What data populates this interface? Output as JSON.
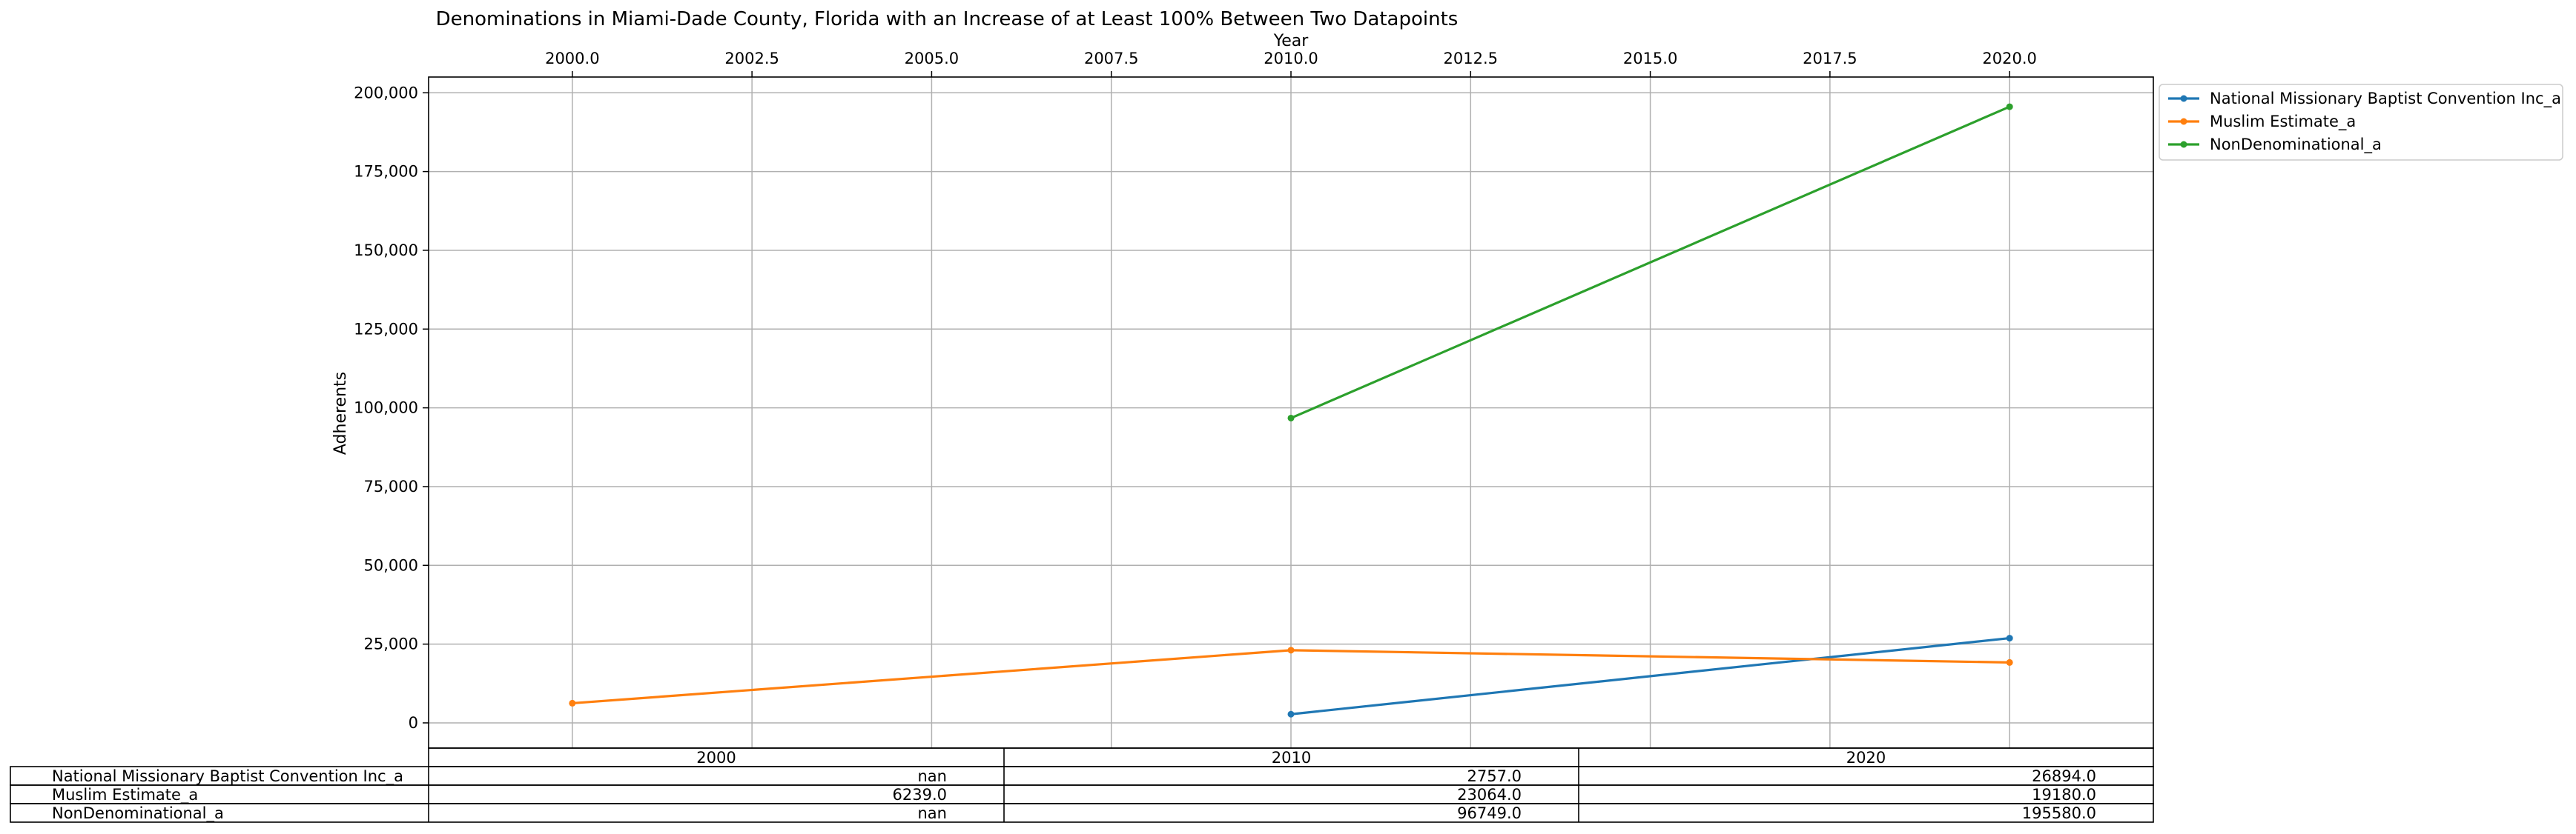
{
  "chart_data": {
    "type": "line",
    "title": "Denominations in Miami-Dade County, Florida with an Increase of at Least 100% Between Two Datapoints",
    "xlabel": "Year",
    "ylabel": "Adherents",
    "xlim": [
      1998.0,
      2022.0
    ],
    "ylim": [
      -8000,
      205000
    ],
    "x_ticks": [
      "2000.0",
      "2002.5",
      "2005.0",
      "2007.5",
      "2010.0",
      "2012.5",
      "2015.0",
      "2017.5",
      "2020.0"
    ],
    "y_ticks": [
      "0",
      "25,000",
      "50,000",
      "75,000",
      "100,000",
      "125,000",
      "150,000",
      "175,000",
      "200,000"
    ],
    "x_axis_position": "top",
    "grid": true,
    "legend_position": "outside-top-right",
    "series": [
      {
        "name": "National Missionary Baptist Convention Inc_a",
        "color": "#1f77b4",
        "x": [
          2000,
          2010,
          2020
        ],
        "values": [
          null,
          2757.0,
          26894.0
        ]
      },
      {
        "name": "Muslim Estimate_a",
        "color": "#ff7f0e",
        "x": [
          2000,
          2010,
          2020
        ],
        "values": [
          6239.0,
          23064.0,
          19180.0
        ]
      },
      {
        "name": "NonDenominational_a",
        "color": "#2ca02c",
        "x": [
          2000,
          2010,
          2020
        ],
        "values": [
          null,
          96749.0,
          195580.0
        ]
      }
    ],
    "table": {
      "columns": [
        "2000",
        "2010",
        "2020"
      ],
      "rows": [
        {
          "label": "National Missionary Baptist Convention Inc_a",
          "cells": [
            "nan",
            "2757.0",
            "26894.0"
          ]
        },
        {
          "label": "Muslim Estimate_a",
          "cells": [
            "6239.0",
            "23064.0",
            "19180.0"
          ]
        },
        {
          "label": "NonDenominational_a",
          "cells": [
            "nan",
            "96749.0",
            "195580.0"
          ]
        }
      ]
    }
  }
}
